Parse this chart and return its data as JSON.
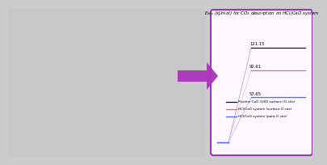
{
  "panel_title_italic": "$E_{\\mathrm{des}}$",
  "panel_title_rest": " (kJ/mol) for CO$_2$ desorption on HCl/CaO system",
  "val_black": 121.15,
  "val_red": 92.61,
  "val_blue": 57.65,
  "label_black": "Pristine CaO (100) surface (O-site)",
  "label_red": "HCl/CaO system (surface-O site)",
  "label_blue": "HCl/CaO system (para-O site)",
  "color_black": "#111111",
  "color_red": "#ff5577",
  "color_blue": "#5566ff",
  "color_rise_black": "#aaaaaa",
  "color_rise_red": "#ffbbcc",
  "color_rise_blue": "#bbbbff",
  "box_face": "#fdf8ff",
  "box_edge": "#9933cc",
  "arrow_face": "#aa33bb",
  "fig_bg": "#cccccc",
  "left_bg": "#c8c8c8"
}
